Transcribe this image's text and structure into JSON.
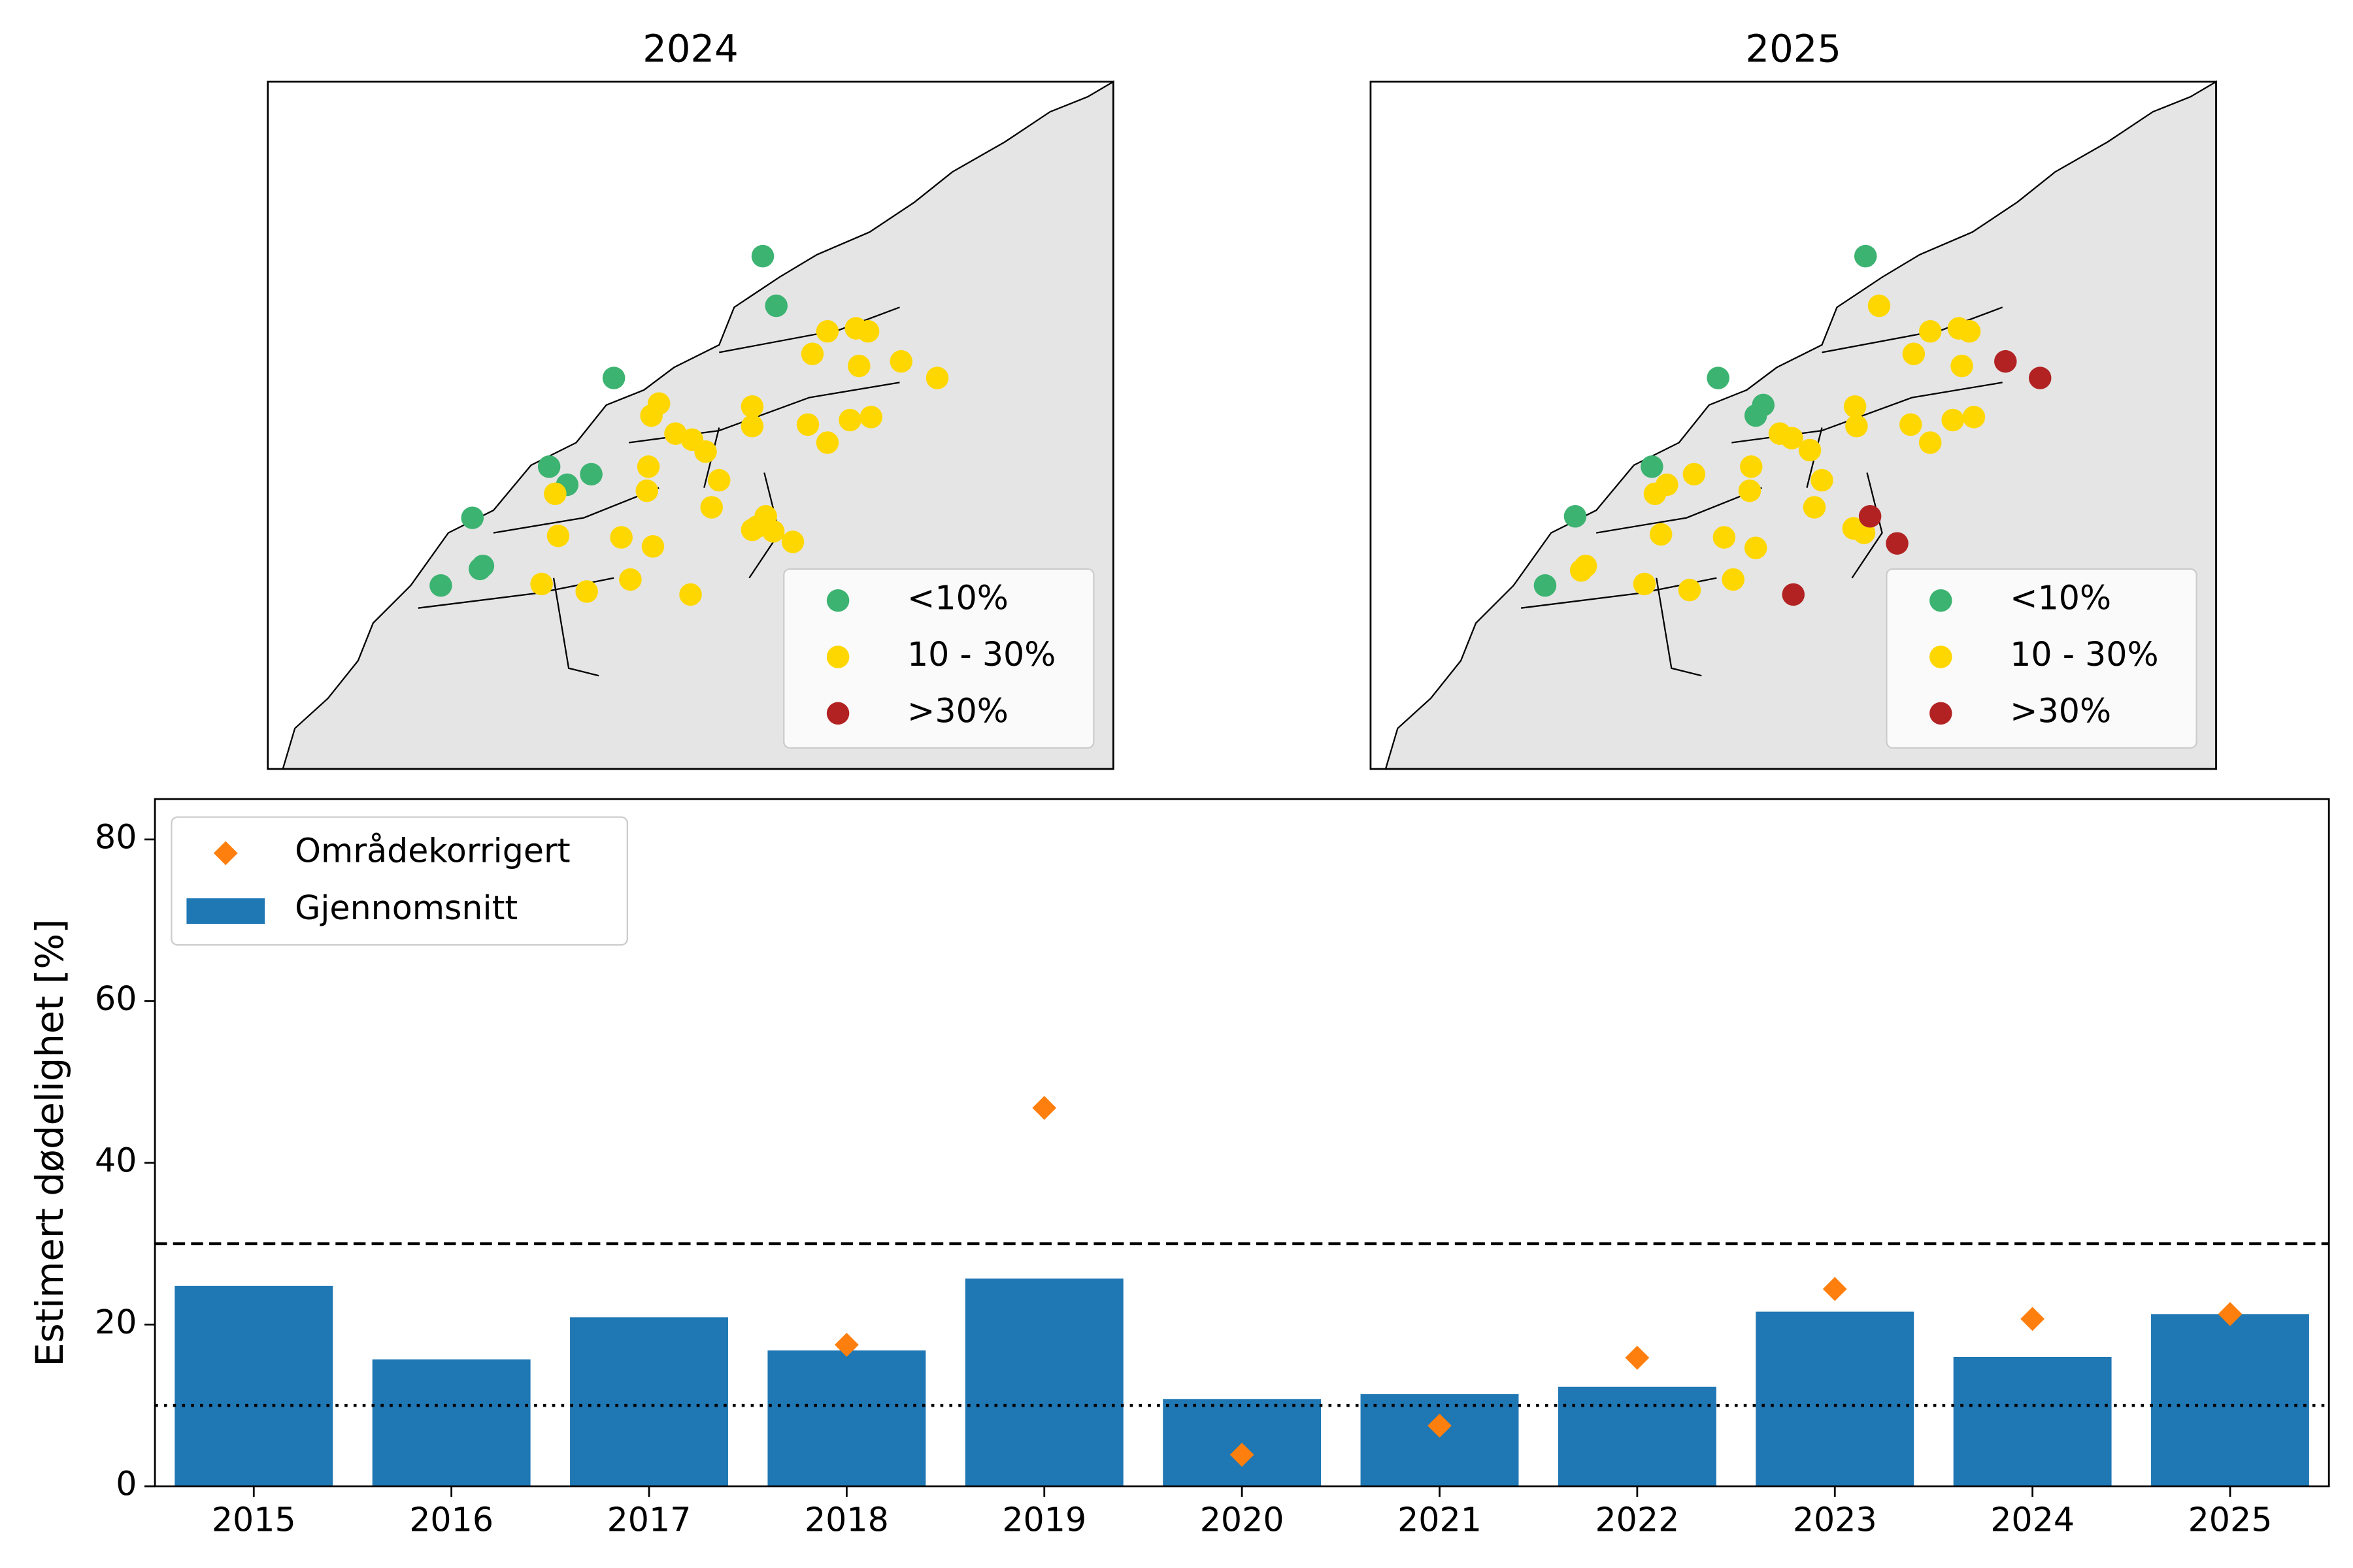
{
  "chart_data": [
    {
      "type": "map",
      "title": "2024",
      "legend_loc": "lower right",
      "legend": [
        {
          "label": "<10%",
          "color": "#3cb371"
        },
        {
          "label": "10 - 30%",
          "color": "#ffd700"
        },
        {
          "label": ">30%",
          "color": "#b22222"
        }
      ]
    },
    {
      "type": "map",
      "title": "2025",
      "legend_loc": "lower right",
      "legend": [
        {
          "label": "<10%",
          "color": "#3cb371"
        },
        {
          "label": "10 - 30%",
          "color": "#ffd700"
        },
        {
          "label": ">30%",
          "color": "#b22222"
        }
      ]
    },
    {
      "type": "bar",
      "ylabel": "Estimert dødelighet [%]",
      "categories": [
        "2015",
        "2016",
        "2017",
        "2018",
        "2019",
        "2020",
        "2021",
        "2022",
        "2023",
        "2024",
        "2025"
      ],
      "series": [
        {
          "name": "Områdekorrigert",
          "type": "scatter",
          "marker": "diamond",
          "color": "#ff7f0e",
          "values": [
            null,
            null,
            null,
            17.5,
            46.8,
            3.9,
            7.5,
            15.9,
            24.4,
            20.7,
            21.3
          ]
        },
        {
          "name": "Gjennomsnitt",
          "type": "bar",
          "color": "#1f77b4",
          "values": [
            24.8,
            15.7,
            20.9,
            16.8,
            25.7,
            10.8,
            11.4,
            12.3,
            21.6,
            16.0,
            21.3
          ]
        }
      ],
      "hlines": [
        {
          "value": 30,
          "style": "dashed"
        },
        {
          "value": 10,
          "style": "dotted"
        }
      ],
      "ylim": [
        0,
        85
      ],
      "yticks": [
        0,
        20,
        40,
        60,
        80
      ],
      "legend_loc": "upper left"
    }
  ]
}
